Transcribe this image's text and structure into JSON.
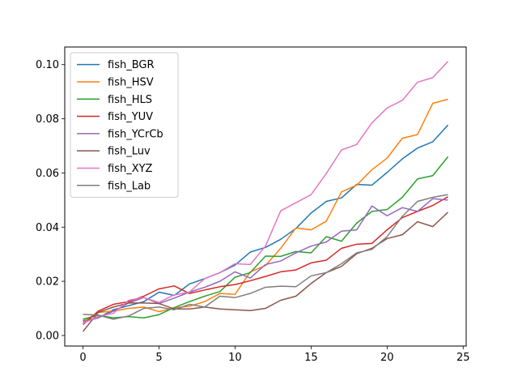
{
  "chart_data": {
    "type": "line",
    "title": "",
    "xlabel": "",
    "ylabel": "",
    "xlim": [
      -1.2,
      25.2
    ],
    "ylim": [
      -0.0039,
      0.1065
    ],
    "x_ticks": [
      0,
      5,
      10,
      15,
      20,
      25
    ],
    "y_ticks": [
      0.0,
      0.02,
      0.04,
      0.06,
      0.08,
      0.1
    ],
    "y_tick_labels": [
      "0.00",
      "0.02",
      "0.04",
      "0.06",
      "0.08",
      "0.10"
    ],
    "grid": false,
    "legend_position": "upper-left",
    "x": [
      0,
      1,
      2,
      3,
      4,
      5,
      6,
      7,
      8,
      9,
      10,
      11,
      12,
      13,
      14,
      15,
      16,
      17,
      18,
      19,
      20,
      21,
      22,
      23,
      24
    ],
    "series": [
      {
        "name": "fish_BGR",
        "color": "#1f77b4",
        "values": [
          0.0055,
          0.0065,
          0.0095,
          0.011,
          0.0125,
          0.016,
          0.0148,
          0.019,
          0.021,
          0.0232,
          0.026,
          0.0308,
          0.0325,
          0.0355,
          0.0395,
          0.0452,
          0.0495,
          0.0508,
          0.0558,
          0.0555,
          0.0602,
          0.0652,
          0.0692,
          0.0715,
          0.0777
        ]
      },
      {
        "name": "fish_HSV",
        "color": "#ff7f0e",
        "values": [
          0.005,
          0.0085,
          0.009,
          0.01,
          0.0105,
          0.0088,
          0.0102,
          0.0108,
          0.0125,
          0.0155,
          0.0152,
          0.0235,
          0.0258,
          0.0322,
          0.0397,
          0.039,
          0.0422,
          0.053,
          0.0555,
          0.0612,
          0.0655,
          0.0728,
          0.0742,
          0.0857,
          0.0872
        ]
      },
      {
        "name": "fish_HLS",
        "color": "#2ca02c",
        "values": [
          0.006,
          0.0075,
          0.0065,
          0.007,
          0.0065,
          0.0077,
          0.0103,
          0.0125,
          0.0145,
          0.0162,
          0.0215,
          0.0232,
          0.0293,
          0.0292,
          0.031,
          0.0305,
          0.0365,
          0.0348,
          0.0415,
          0.0458,
          0.0465,
          0.051,
          0.0578,
          0.059,
          0.066
        ]
      },
      {
        "name": "fish_YUV",
        "color": "#d62728",
        "values": [
          0.004,
          0.009,
          0.0115,
          0.0125,
          0.0145,
          0.0172,
          0.0183,
          0.0155,
          0.0168,
          0.018,
          0.0188,
          0.0202,
          0.0218,
          0.0235,
          0.0242,
          0.0268,
          0.0278,
          0.0322,
          0.0337,
          0.034,
          0.039,
          0.0435,
          0.0458,
          0.048,
          0.0512
        ]
      },
      {
        "name": "fish_YCrCb",
        "color": "#9467bd",
        "values": [
          0.005,
          0.0065,
          0.009,
          0.012,
          0.014,
          0.0118,
          0.0138,
          0.016,
          0.0178,
          0.02,
          0.0235,
          0.0212,
          0.0262,
          0.0275,
          0.0305,
          0.033,
          0.0345,
          0.0385,
          0.039,
          0.0478,
          0.0442,
          0.0472,
          0.0458,
          0.0505,
          0.05
        ]
      },
      {
        "name": "fish_Luv",
        "color": "#8c564b",
        "values": [
          0.0015,
          0.0085,
          0.0105,
          0.012,
          0.012,
          0.0118,
          0.0098,
          0.0098,
          0.0105,
          0.0098,
          0.0095,
          0.0092,
          0.01,
          0.013,
          0.0145,
          0.0192,
          0.0232,
          0.0255,
          0.0302,
          0.0322,
          0.0358,
          0.0372,
          0.042,
          0.0402,
          0.0455
        ]
      },
      {
        "name": "fish_XYZ",
        "color": "#e377c2",
        "values": [
          0.0045,
          0.007,
          0.0082,
          0.013,
          0.014,
          0.0122,
          0.015,
          0.016,
          0.021,
          0.0232,
          0.0265,
          0.0262,
          0.033,
          0.046,
          0.049,
          0.052,
          0.0598,
          0.0685,
          0.0705,
          0.0785,
          0.084,
          0.0868,
          0.0935,
          0.0952,
          0.1012
        ]
      },
      {
        "name": "fish_Lab",
        "color": "#7f7f7f",
        "values": [
          0.0078,
          0.0075,
          0.006,
          0.0072,
          0.01,
          0.0105,
          0.0095,
          0.0115,
          0.0105,
          0.0145,
          0.014,
          0.0155,
          0.0178,
          0.0182,
          0.018,
          0.022,
          0.0232,
          0.0265,
          0.0305,
          0.0318,
          0.0365,
          0.044,
          0.0495,
          0.051,
          0.052
        ]
      }
    ]
  }
}
